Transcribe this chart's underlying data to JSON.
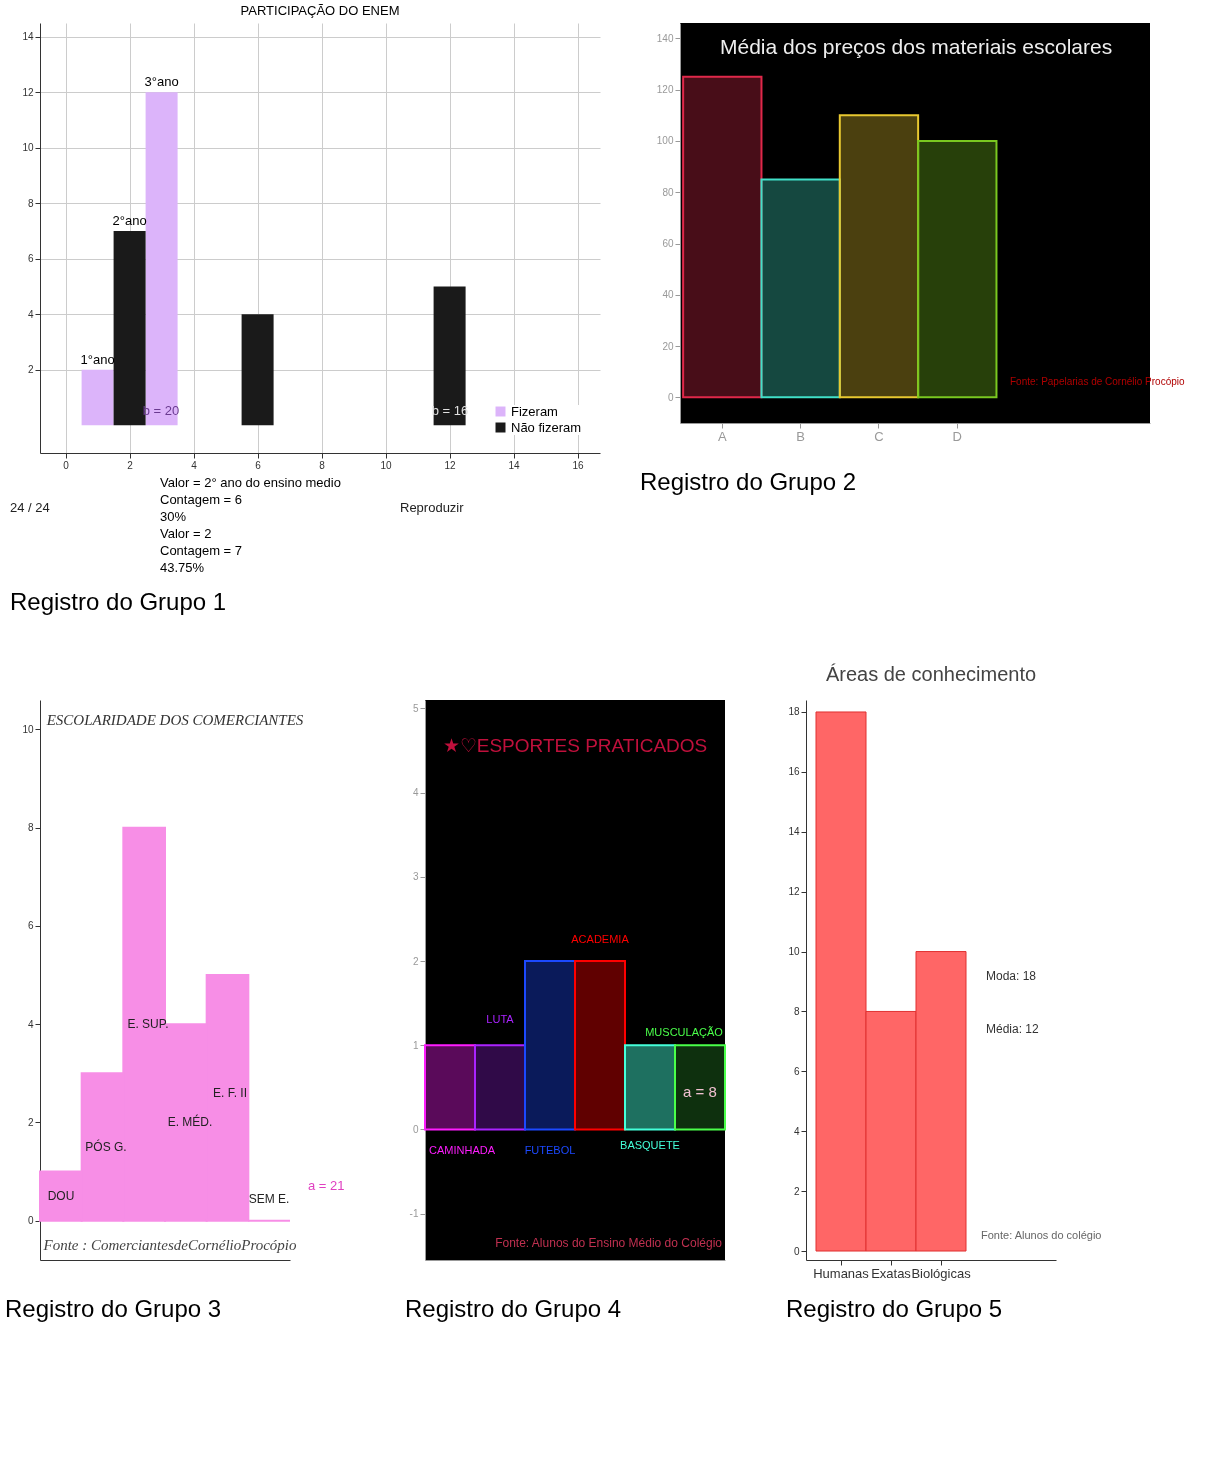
{
  "chart_data": [
    {
      "type": "bar",
      "title": "PARTICIPAÇÃO DO ENEM",
      "series": [
        {
          "name": "Fizeram",
          "color": "#dcb4fa",
          "x": [
            1,
            3
          ],
          "values": [
            2,
            12
          ]
        },
        {
          "name": "Não fizeram",
          "color": "#1a1a1a",
          "x": [
            2,
            6,
            12
          ],
          "values": [
            7,
            4,
            5
          ]
        }
      ],
      "xlim": [
        -0.8,
        16.7
      ],
      "ylim": [
        -1,
        14.5
      ],
      "xticks": [
        0,
        2,
        4,
        6,
        8,
        10,
        12,
        14,
        16
      ],
      "yticks": [
        2,
        4,
        6,
        8,
        10,
        12,
        14
      ],
      "grid": true,
      "legend": "bottom right",
      "annotations": [
        {
          "text": "1°ano",
          "x": 1,
          "y": 2
        },
        {
          "text": "2°ano",
          "x": 2,
          "y": 7
        },
        {
          "text": "3°ano",
          "x": 3,
          "y": 12
        },
        "b = 20",
        "b = 16",
        "Valor = 2° ano do ensino medio",
        "Contagem = 6",
        "30%",
        "Valor = 2",
        "Contagem = 7",
        "43.75%",
        "24 / 24",
        "Reproduzir",
        "Registro do Grupo 1"
      ]
    },
    {
      "type": "bar",
      "title": "Média dos preços dos materiais escolares",
      "categories": [
        "A",
        "B",
        "C",
        "D"
      ],
      "values": [
        125,
        85,
        110,
        100
      ],
      "colors": [
        "#e0284a",
        "#40e0c8",
        "#e8c830",
        "#7ac820"
      ],
      "ylim": [
        -10,
        146
      ],
      "yticks": [
        0,
        20,
        40,
        60,
        80,
        100,
        120,
        140
      ],
      "annotations": [
        "Fonte: Papelarias de Cornélio Procópio",
        "Registro do Grupo 2"
      ]
    },
    {
      "type": "bar",
      "title": "ESCOLARIDADE DOS COMERCIANTES",
      "categories": [
        null,
        null,
        null,
        null,
        null,
        null
      ],
      "values": [
        1,
        3,
        8,
        4,
        5,
        0
      ],
      "color": "#f78ee6",
      "ylim": [
        -0.8,
        10.6
      ],
      "yticks": [
        0,
        2,
        4,
        6,
        8,
        10
      ],
      "tick_labels": "y",
      "annotations": [
        "DOU",
        "PÓS G.",
        "E. SUP.",
        "E. MÉD.",
        "E. F. II",
        "SEM E.",
        "a = 21",
        "Fonte : ComerciantesdeCornélioProcópio",
        "Registro do Grupo 3"
      ]
    },
    {
      "type": "bar",
      "title": "★♡ESPORTES PRATICADOS",
      "categories": [
        null,
        null,
        null,
        null,
        null,
        null
      ],
      "values": [
        1,
        1,
        2,
        2,
        1,
        1
      ],
      "colors": [
        "#5a0a5a",
        "#300a48",
        "#0a1a5a",
        "#600000",
        "#1e7060",
        "#0e300e"
      ],
      "ylim": [
        -1.55,
        5.1
      ],
      "yticks": [
        -1,
        0,
        1,
        2,
        3,
        4,
        5
      ],
      "tick_labels": "y",
      "annotations": [
        "CAMINHADA",
        "LUTA",
        "FUTEBOL",
        "ACADEMIA",
        "BASQUETE",
        "MUSCULAÇÃO",
        "a = 8",
        "Fonte: Alunos do Ensino Médio do Colégio",
        "Registro do Grupo 4"
      ]
    },
    {
      "type": "bar",
      "title": "Áreas de conhecimento",
      "categories": [
        "Humanas",
        "Exatas",
        "Biológicas"
      ],
      "values": [
        18,
        8,
        10
      ],
      "color": "#ff6666",
      "ylim": [
        -0.3,
        18.4
      ],
      "yticks": [
        0,
        2,
        4,
        6,
        8,
        10,
        12,
        14,
        16,
        18
      ],
      "annotations": [
        "Moda: 18",
        "Média: 12",
        "Fonte: Alunos do colégio",
        "Registro do Grupo 5"
      ]
    }
  ]
}
